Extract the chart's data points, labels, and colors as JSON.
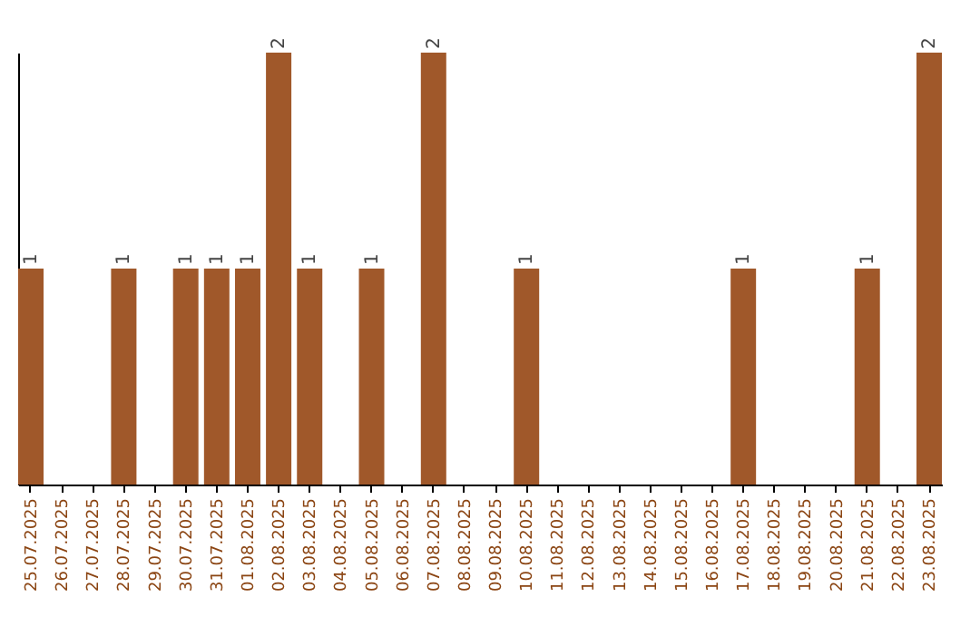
{
  "chart_data": {
    "type": "bar",
    "categories": [
      "25.07.2025",
      "26.07.2025",
      "27.07.2025",
      "28.07.2025",
      "29.07.2025",
      "30.07.2025",
      "31.07.2025",
      "01.08.2025",
      "02.08.2025",
      "03.08.2025",
      "04.08.2025",
      "05.08.2025",
      "06.08.2025",
      "07.08.2025",
      "08.08.2025",
      "09.08.2025",
      "10.08.2025",
      "11.08.2025",
      "12.08.2025",
      "13.08.2025",
      "14.08.2025",
      "15.08.2025",
      "16.08.2025",
      "17.08.2025",
      "18.08.2025",
      "19.08.2025",
      "20.08.2025",
      "21.08.2025",
      "22.08.2025",
      "23.08.2025"
    ],
    "values": [
      1,
      0,
      0,
      1,
      0,
      1,
      1,
      1,
      2,
      1,
      0,
      1,
      0,
      2,
      0,
      0,
      1,
      0,
      0,
      0,
      0,
      0,
      0,
      1,
      0,
      0,
      0,
      1,
      0,
      2
    ],
    "value_labels": [
      "1",
      null,
      null,
      "1",
      null,
      "1",
      "1",
      "1",
      "2",
      "1",
      null,
      "1",
      null,
      "2",
      null,
      null,
      "1",
      null,
      null,
      null,
      null,
      null,
      null,
      "1",
      null,
      null,
      null,
      "1",
      null,
      "2"
    ],
    "color": "#a0582a",
    "grid": false
  }
}
